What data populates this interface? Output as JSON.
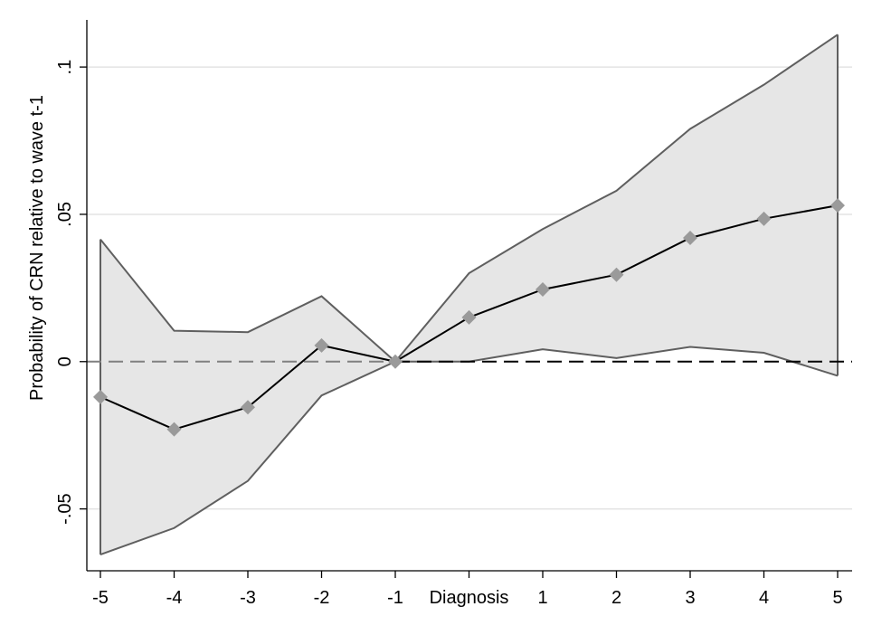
{
  "chart_data": {
    "type": "line",
    "title": "",
    "xlabel": "",
    "ylabel": "Probability of CRN relative to wave t-1",
    "x_ticks": [
      "-5",
      "-4",
      "-3",
      "-2",
      "-1",
      "Diagnosis",
      "1",
      "2",
      "3",
      "4",
      "5"
    ],
    "y_ticks": [
      {
        "value": -0.05,
        "label": "-.05"
      },
      {
        "value": 0,
        "label": "0"
      },
      {
        "value": 0.05,
        "label": ".05"
      },
      {
        "value": 0.1,
        "label": ".1"
      }
    ],
    "ylim": [
      -0.071,
      0.116
    ],
    "grid": true,
    "series": [
      {
        "values": [
          -0.012,
          -0.023,
          -0.0155,
          0.0055,
          0.0,
          0.015,
          0.0245,
          0.0295,
          0.042,
          0.0485,
          0.053
        ],
        "ci_upper": [
          0.0415,
          0.0105,
          0.01,
          0.0222,
          0.0,
          0.03,
          0.045,
          0.058,
          0.079,
          0.094,
          0.111
        ],
        "ci_lower": [
          -0.0655,
          -0.0565,
          -0.0405,
          -0.0115,
          0.0,
          0.0,
          0.0042,
          0.0012,
          0.005,
          0.003,
          -0.0048
        ]
      }
    ],
    "reference_line": {
      "y": 0,
      "style": "dashed"
    },
    "colors": {
      "line": "#000000",
      "marker": "#9a9a9a",
      "ci_fill": "#e6e6e6",
      "ci_edge": "#5f5f5f",
      "grid": "#e3e3e3",
      "ref_left": "#808080",
      "ref_right": "#000000"
    }
  }
}
